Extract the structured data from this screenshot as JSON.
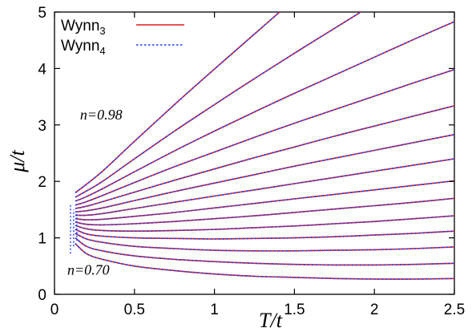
{
  "chart_data": {
    "type": "line",
    "title": "",
    "xlabel": "T/t",
    "ylabel": "μ/t",
    "xlim": [
      0,
      2.5
    ],
    "ylim": [
      0,
      5
    ],
    "xticks": [
      "0",
      "0.5",
      "1",
      "1.5",
      "2",
      "2.5"
    ],
    "yticks": [
      "0",
      "1",
      "2",
      "3",
      "4",
      "5"
    ],
    "grid": false,
    "legend_position": "top-left",
    "legend": [
      {
        "base": "Wynn",
        "sub": "3",
        "style": "solid",
        "color": "#e41a1c"
      },
      {
        "base": "Wynn",
        "sub": "4",
        "style": "dotted",
        "color": "#1f3fff"
      }
    ],
    "annotations": [
      {
        "text": "n=0.98",
        "x": 0.16,
        "y": 3.1
      },
      {
        "text": "n=0.70",
        "x": 0.08,
        "y": 0.35
      }
    ],
    "series_sampling_note": "Each curve sampled at T = 0.13, 0.2, 0.3, 0.5, 0.75, 1.0, 1.25, 1.5, 1.75, 2.0, 2.25, 2.5 (null = beyond plot)",
    "x": [
      0.13,
      0.2,
      0.3,
      0.5,
      0.75,
      1.0,
      1.25,
      1.5,
      1.75,
      2.0,
      2.25,
      2.5
    ],
    "curves": [
      {
        "label": "n=0.70",
        "y": [
          0.9,
          0.72,
          0.62,
          0.5,
          0.42,
          0.36,
          0.32,
          0.3,
          0.28,
          0.27,
          0.27,
          0.28
        ]
      },
      {
        "label": "",
        "y": [
          1.0,
          0.85,
          0.77,
          0.68,
          0.62,
          0.58,
          0.55,
          0.53,
          0.52,
          0.52,
          0.53,
          0.55
        ]
      },
      {
        "label": "",
        "y": [
          1.08,
          0.98,
          0.92,
          0.85,
          0.81,
          0.78,
          0.77,
          0.77,
          0.78,
          0.79,
          0.81,
          0.84
        ]
      },
      {
        "label": "",
        "y": [
          1.15,
          1.07,
          1.03,
          1.0,
          0.99,
          0.98,
          0.99,
          1.0,
          1.02,
          1.05,
          1.08,
          1.12
        ]
      },
      {
        "label": "",
        "y": [
          1.22,
          1.16,
          1.13,
          1.12,
          1.13,
          1.15,
          1.18,
          1.21,
          1.25,
          1.29,
          1.34,
          1.39
        ]
      },
      {
        "label": "",
        "y": [
          1.28,
          1.24,
          1.23,
          1.25,
          1.29,
          1.34,
          1.39,
          1.45,
          1.51,
          1.57,
          1.63,
          1.7
        ]
      },
      {
        "label": "",
        "y": [
          1.34,
          1.32,
          1.33,
          1.38,
          1.45,
          1.53,
          1.61,
          1.69,
          1.77,
          1.85,
          1.93,
          2.01
        ]
      },
      {
        "label": "",
        "y": [
          1.4,
          1.4,
          1.43,
          1.52,
          1.63,
          1.74,
          1.85,
          1.96,
          2.07,
          2.18,
          2.29,
          2.4
        ]
      },
      {
        "label": "",
        "y": [
          1.46,
          1.48,
          1.53,
          1.66,
          1.82,
          1.97,
          2.12,
          2.27,
          2.41,
          2.55,
          2.69,
          2.83
        ]
      },
      {
        "label": "",
        "y": [
          1.52,
          1.56,
          1.64,
          1.81,
          2.02,
          2.22,
          2.42,
          2.61,
          2.8,
          2.98,
          3.16,
          3.34
        ]
      },
      {
        "label": "",
        "y": [
          1.58,
          1.64,
          1.75,
          1.98,
          2.26,
          2.52,
          2.78,
          3.03,
          3.27,
          3.51,
          3.75,
          3.98
        ]
      },
      {
        "label": "",
        "y": [
          1.65,
          1.73,
          1.87,
          2.17,
          2.54,
          2.89,
          3.23,
          3.56,
          3.88,
          4.2,
          4.52,
          4.83
        ]
      },
      {
        "label": "",
        "y": [
          1.72,
          1.83,
          2.0,
          2.4,
          2.89,
          3.36,
          3.82,
          4.27,
          4.71,
          null,
          null,
          null
        ]
      },
      {
        "label": "n=0.98",
        "y": [
          1.8,
          1.95,
          2.18,
          2.71,
          3.36,
          3.99,
          4.61,
          null,
          null,
          null,
          null,
          null
        ]
      }
    ]
  }
}
